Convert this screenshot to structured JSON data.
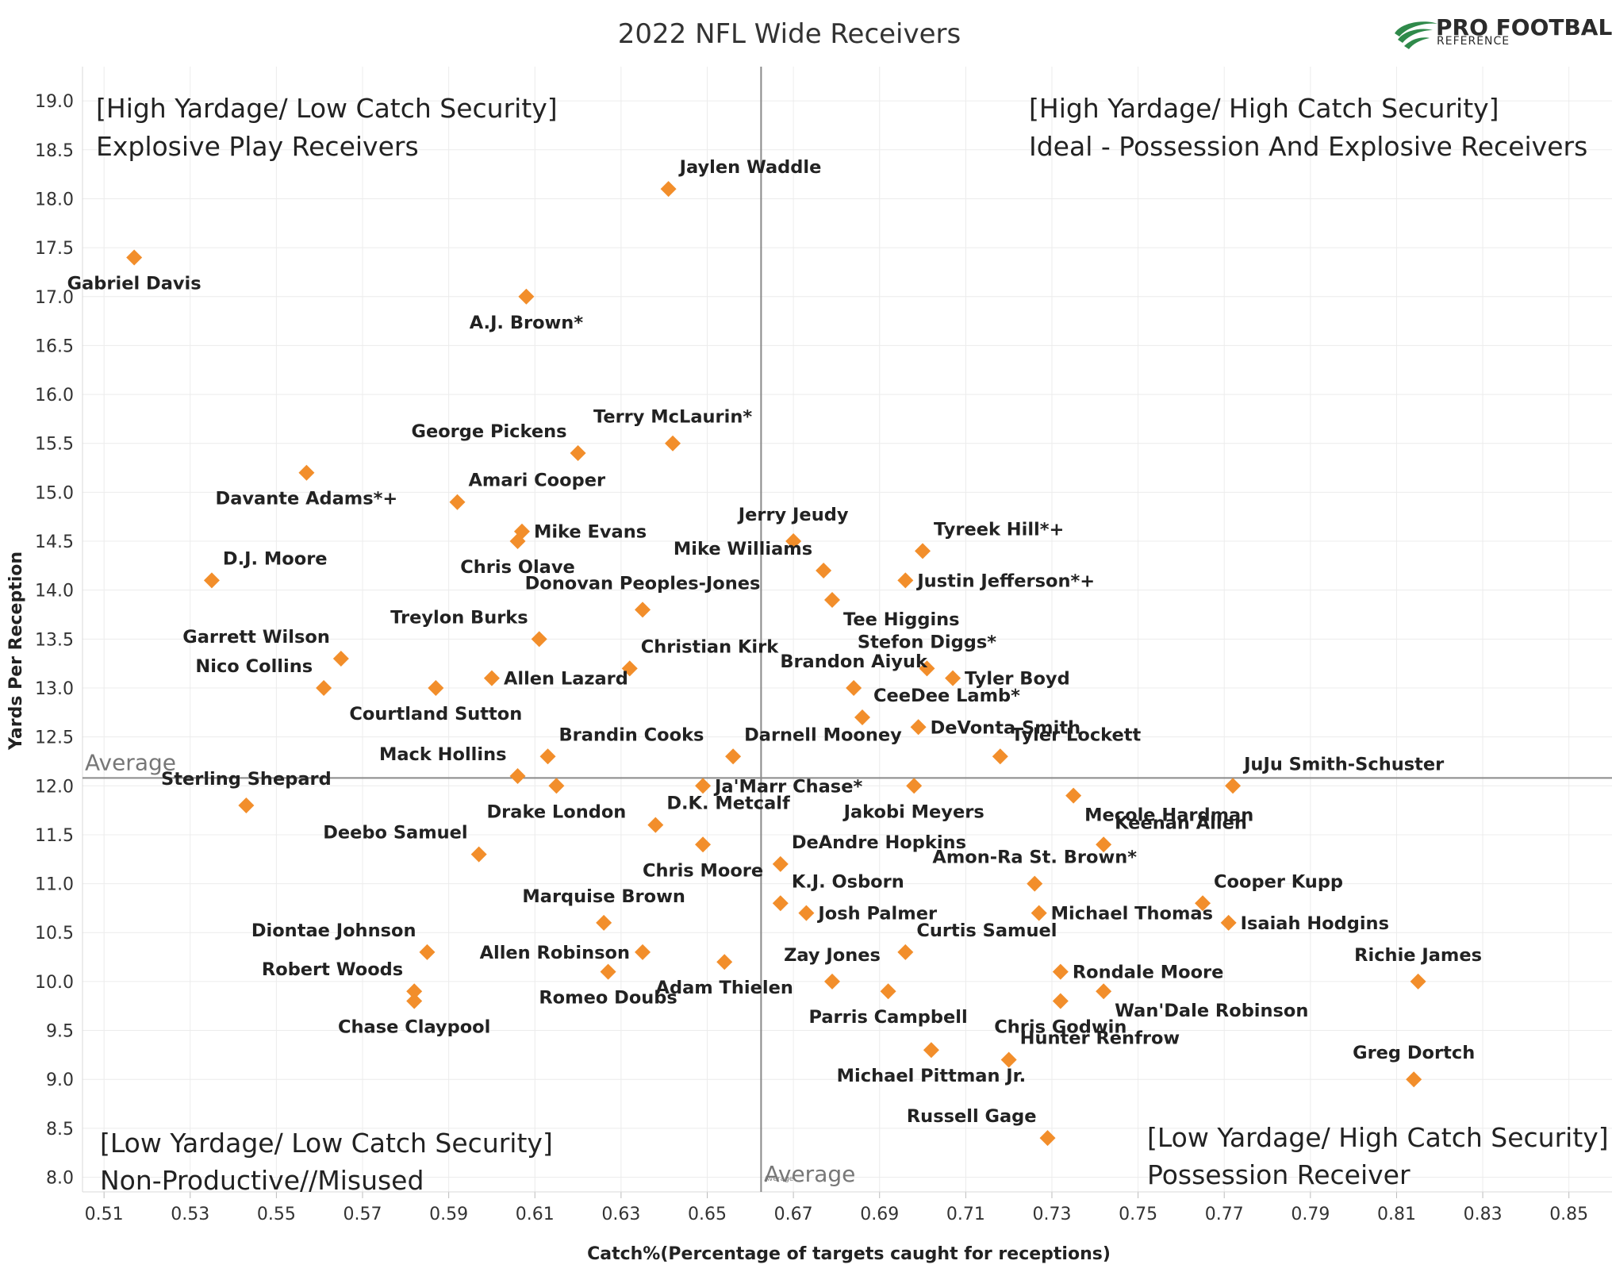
{
  "chart_data": {
    "type": "scatter",
    "title": "2022 NFL Wide Receivers",
    "xlabel": "Catch%(Percentage of targets caught for receptions)",
    "ylabel": "Yards Per Reception",
    "xlim": [
      0.505,
      0.86
    ],
    "ylim": [
      7.85,
      19.35
    ],
    "x_ticks": [
      "0.51",
      "0.53",
      "0.55",
      "0.57",
      "0.59",
      "0.61",
      "0.63",
      "0.65",
      "0.67",
      "0.69",
      "0.71",
      "0.73",
      "0.75",
      "0.77",
      "0.79",
      "0.81",
      "0.83",
      "0.85"
    ],
    "y_ticks": [
      "8.0",
      "8.5",
      "9.0",
      "9.5",
      "10.0",
      "10.5",
      "11.0",
      "11.5",
      "12.0",
      "12.5",
      "13.0",
      "13.5",
      "14.0",
      "14.5",
      "15.0",
      "15.5",
      "16.0",
      "16.5",
      "17.0",
      "17.5",
      "18.0",
      "18.5",
      "19.0"
    ],
    "grid": true,
    "marker_color": "#F28E2B",
    "reference_lines": {
      "x_average": 0.6625,
      "y_average": 12.08,
      "label_vertical": "Average",
      "label_horizontal": "Average",
      "label_vertical_small": "Average"
    },
    "quadrants": {
      "top_left": [
        "[High Yardage/ Low Catch Security]",
        "Explosive Play Receivers"
      ],
      "top_right": [
        "[High Yardage/ High Catch Security]",
        "Ideal - Possession And Explosive Receivers"
      ],
      "bottom_left": [
        "[Low Yardage/ Low Catch Security]",
        "Non-Productive//Misused"
      ],
      "bottom_right": [
        "[Low Yardage/ High Catch Security]",
        "Possession Receiver"
      ]
    },
    "points": [
      {
        "name": "Jaylen Waddle",
        "x": 0.641,
        "y": 18.1,
        "pos": "ur"
      },
      {
        "name": "Gabriel Davis",
        "x": 0.517,
        "y": 17.4,
        "pos": "b"
      },
      {
        "name": "A.J. Brown*",
        "x": 0.608,
        "y": 17.0,
        "pos": "b"
      },
      {
        "name": "Terry McLaurin*",
        "x": 0.642,
        "y": 15.5,
        "pos": "t"
      },
      {
        "name": "George Pickens",
        "x": 0.62,
        "y": 15.4,
        "pos": "tl"
      },
      {
        "name": "Davante Adams*+",
        "x": 0.557,
        "y": 15.2,
        "pos": "b"
      },
      {
        "name": "Amari Cooper",
        "x": 0.592,
        "y": 14.9,
        "pos": "ur"
      },
      {
        "name": "Mike Evans",
        "x": 0.607,
        "y": 14.6,
        "pos": "r"
      },
      {
        "name": "Chris Olave",
        "x": 0.606,
        "y": 14.5,
        "pos": "b"
      },
      {
        "name": "Jerry Jeudy",
        "x": 0.67,
        "y": 14.5,
        "pos": "t"
      },
      {
        "name": "Tyreek Hill*+",
        "x": 0.7,
        "y": 14.4,
        "pos": "ur"
      },
      {
        "name": "Mike Williams",
        "x": 0.677,
        "y": 14.2,
        "pos": "tl"
      },
      {
        "name": "D.J. Moore",
        "x": 0.535,
        "y": 14.1,
        "pos": "ur"
      },
      {
        "name": "Justin Jefferson*+",
        "x": 0.696,
        "y": 14.1,
        "pos": "r"
      },
      {
        "name": "Tee Higgins",
        "x": 0.679,
        "y": 13.9,
        "pos": "dr"
      },
      {
        "name": "Donovan Peoples-Jones",
        "x": 0.635,
        "y": 13.8,
        "pos": "t"
      },
      {
        "name": "Treylon Burks",
        "x": 0.611,
        "y": 13.5,
        "pos": "tl"
      },
      {
        "name": "Garrett Wilson",
        "x": 0.565,
        "y": 13.3,
        "pos": "tl"
      },
      {
        "name": "Christian Kirk",
        "x": 0.632,
        "y": 13.2,
        "pos": "ur"
      },
      {
        "name": "Stefon Diggs*",
        "x": 0.701,
        "y": 13.2,
        "pos": "t"
      },
      {
        "name": "Tyler Boyd",
        "x": 0.707,
        "y": 13.1,
        "pos": "r"
      },
      {
        "name": "Allen Lazard",
        "x": 0.6,
        "y": 13.1,
        "pos": "r"
      },
      {
        "name": "Nico Collins",
        "x": 0.561,
        "y": 13.0,
        "pos": "tl"
      },
      {
        "name": "Courtland Sutton",
        "x": 0.587,
        "y": 13.0,
        "pos": "b"
      },
      {
        "name": "Brandon Aiyuk",
        "x": 0.684,
        "y": 13.0,
        "pos": "t"
      },
      {
        "name": "CeeDee Lamb*",
        "x": 0.686,
        "y": 12.7,
        "pos": "ur"
      },
      {
        "name": "DeVonta Smith",
        "x": 0.699,
        "y": 12.6,
        "pos": "r"
      },
      {
        "name": "Brandin Cooks",
        "x": 0.613,
        "y": 12.3,
        "pos": "ur"
      },
      {
        "name": "Darnell Mooney",
        "x": 0.656,
        "y": 12.3,
        "pos": "ur"
      },
      {
        "name": "Tyler Lockett",
        "x": 0.718,
        "y": 12.3,
        "pos": "ur"
      },
      {
        "name": "Mack Hollins",
        "x": 0.606,
        "y": 12.1,
        "pos": "tl"
      },
      {
        "name": "Drake London",
        "x": 0.615,
        "y": 12.0,
        "pos": "b"
      },
      {
        "name": "Ja'Marr Chase*",
        "x": 0.649,
        "y": 12.0,
        "pos": "r"
      },
      {
        "name": "Jakobi Meyers",
        "x": 0.698,
        "y": 12.0,
        "pos": "b"
      },
      {
        "name": "JuJu Smith-Schuster",
        "x": 0.772,
        "y": 12.0,
        "pos": "ur"
      },
      {
        "name": "Mecole Hardman",
        "x": 0.735,
        "y": 11.9,
        "pos": "dr"
      },
      {
        "name": "Sterling Shepard",
        "x": 0.543,
        "y": 11.8,
        "pos": "t"
      },
      {
        "name": "D.K. Metcalf",
        "x": 0.638,
        "y": 11.6,
        "pos": "ur"
      },
      {
        "name": "Chris Moore",
        "x": 0.649,
        "y": 11.4,
        "pos": "b"
      },
      {
        "name": "Keenan Allen",
        "x": 0.742,
        "y": 11.4,
        "pos": "ur"
      },
      {
        "name": "Deebo Samuel",
        "x": 0.597,
        "y": 11.3,
        "pos": "tl"
      },
      {
        "name": "DeAndre Hopkins",
        "x": 0.667,
        "y": 11.2,
        "pos": "ur"
      },
      {
        "name": "Amon-Ra St. Brown*",
        "x": 0.726,
        "y": 11.0,
        "pos": "t"
      },
      {
        "name": "K.J. Osborn",
        "x": 0.667,
        "y": 10.8,
        "pos": "ur"
      },
      {
        "name": "Cooper Kupp",
        "x": 0.765,
        "y": 10.8,
        "pos": "ur"
      },
      {
        "name": "Josh Palmer",
        "x": 0.673,
        "y": 10.7,
        "pos": "r"
      },
      {
        "name": "Michael Thomas",
        "x": 0.727,
        "y": 10.7,
        "pos": "r"
      },
      {
        "name": "Marquise Brown",
        "x": 0.626,
        "y": 10.6,
        "pos": "t"
      },
      {
        "name": "Isaiah Hodgins",
        "x": 0.771,
        "y": 10.6,
        "pos": "r"
      },
      {
        "name": "Curtis Samuel",
        "x": 0.696,
        "y": 10.3,
        "pos": "ur"
      },
      {
        "name": "Diontae Johnson",
        "x": 0.585,
        "y": 10.3,
        "pos": "tl"
      },
      {
        "name": "Allen Robinson",
        "x": 0.635,
        "y": 10.3,
        "pos": "l"
      },
      {
        "name": "Adam Thielen",
        "x": 0.654,
        "y": 10.2,
        "pos": "b"
      },
      {
        "name": "Rondale Moore",
        "x": 0.732,
        "y": 10.1,
        "pos": "r"
      },
      {
        "name": "Romeo Doubs",
        "x": 0.627,
        "y": 10.1,
        "pos": "b"
      },
      {
        "name": "Zay Jones",
        "x": 0.679,
        "y": 10.0,
        "pos": "t"
      },
      {
        "name": "Richie James",
        "x": 0.815,
        "y": 10.0,
        "pos": "t"
      },
      {
        "name": "Robert Woods",
        "x": 0.582,
        "y": 9.9,
        "pos": "tl"
      },
      {
        "name": "Parris Campbell",
        "x": 0.692,
        "y": 9.9,
        "pos": "b"
      },
      {
        "name": "Wan'Dale Robinson",
        "x": 0.742,
        "y": 9.9,
        "pos": "dr"
      },
      {
        "name": "Chase Claypool",
        "x": 0.582,
        "y": 9.8,
        "pos": "b"
      },
      {
        "name": "Chris Godwin",
        "x": 0.732,
        "y": 9.8,
        "pos": "b"
      },
      {
        "name": "Michael Pittman Jr.",
        "x": 0.702,
        "y": 9.3,
        "pos": "b"
      },
      {
        "name": "Hunter Renfrow",
        "x": 0.72,
        "y": 9.2,
        "pos": "ur"
      },
      {
        "name": "Greg Dortch",
        "x": 0.814,
        "y": 9.0,
        "pos": "t"
      },
      {
        "name": "Russell Gage",
        "x": 0.729,
        "y": 8.4,
        "pos": "tl"
      }
    ]
  },
  "logo": {
    "main": "PRO FOOTBALL",
    "sub": "REFERENCE"
  }
}
